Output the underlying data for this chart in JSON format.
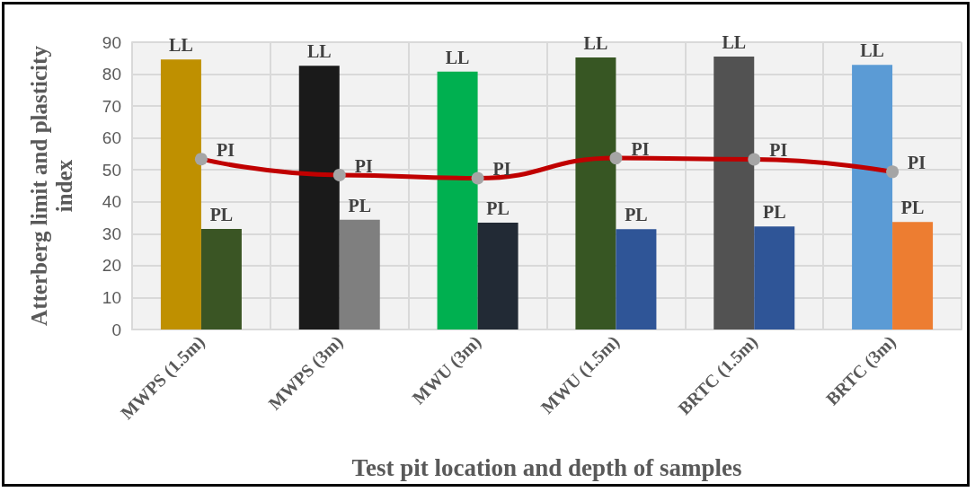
{
  "chart_data": {
    "type": "bar",
    "xlabel": "Test pit location and depth of samples",
    "ylabel": "Atterberg limit and plasticity index",
    "categories": [
      "MWPS (1.5m)",
      "MWPS (3m)",
      "MWU (3m)",
      "MWU (1.5m)",
      "BRTC (1.5m)",
      "BRTC (3m)"
    ],
    "series": [
      {
        "name": "LL",
        "colors": [
          "#bf9000",
          "#1a1a1a",
          "#00b050",
          "#375623",
          "#525252",
          "#5b9bd5"
        ],
        "values": [
          84.6,
          82.6,
          80.8,
          85.2,
          85.5,
          82.9
        ]
      },
      {
        "name": "PL",
        "colors": [
          "#3a5524",
          "#7f7f7f",
          "#222a35",
          "#2f5597",
          "#2f5597",
          "#ed7d31"
        ],
        "values": [
          31.5,
          34.4,
          33.5,
          31.4,
          32.3,
          33.7
        ]
      },
      {
        "name": "PI",
        "type": "line",
        "color": "#c00000",
        "marker": "circle",
        "values": [
          53.4,
          48.4,
          47.4,
          53.7,
          53.3,
          49.4
        ]
      }
    ],
    "ylim": [
      0,
      90
    ],
    "yticks": [
      0,
      10,
      20,
      30,
      40,
      50,
      60,
      70,
      80,
      90
    ],
    "grid": true
  }
}
